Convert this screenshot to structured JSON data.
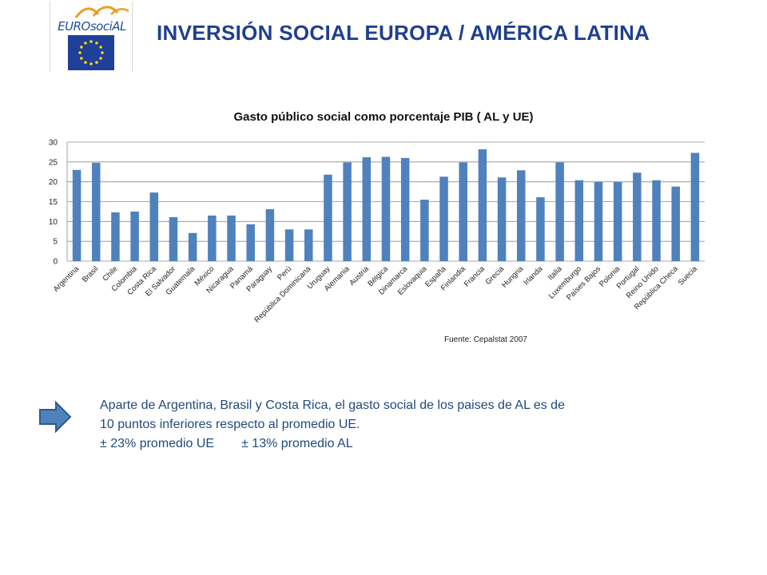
{
  "header": {
    "logo_text": "EUROsociAL",
    "title": "INVERSIÓN SOCIAL EUROPA / AMÉRICA LATINA"
  },
  "chart_data": {
    "type": "bar",
    "title": "Gasto público social como porcentaje PIB ( AL y UE)",
    "xlabel": "",
    "ylabel": "",
    "ylim": [
      0,
      30
    ],
    "yticks": [
      0,
      5,
      10,
      15,
      20,
      25,
      30
    ],
    "grid": true,
    "legend": "none",
    "bar_color": "#4f81bd",
    "categories": [
      "Argentina",
      "Brasil",
      "Chile",
      "Colombia",
      "Costa Rica",
      "El Salvador",
      "Guatemala",
      "México",
      "Nicaragua",
      "Panamá",
      "Paraguay",
      "Perú",
      "República Dominicana",
      "Uruguay",
      "Alemania",
      "Austria",
      "Bélgica",
      "Dinamarca",
      "Eslovaquia",
      "España",
      "Finlandia",
      "Francia",
      "Grecia",
      "Hungria",
      "Irlanda",
      "Italia",
      "Luxemburgo",
      "Países Bajos",
      "Polonia",
      "Portugal",
      "Reino Unido",
      "República Checa",
      "Suecia"
    ],
    "values": [
      23.0,
      24.8,
      12.3,
      12.5,
      17.3,
      11.1,
      7.1,
      11.5,
      11.5,
      9.3,
      13.1,
      8.0,
      8.0,
      21.8,
      24.9,
      26.2,
      26.3,
      26.0,
      15.5,
      21.3,
      24.9,
      28.2,
      21.1,
      22.9,
      16.1,
      24.9,
      20.4,
      20.0,
      20.0,
      22.3,
      20.4,
      18.8,
      27.3
    ]
  },
  "source": "Fuente: Cepalstat 2007",
  "note": {
    "line1": "Aparte de Argentina, Brasil y Costa Rica, el gasto social de los paises de AL es de",
    "line2": "10 puntos inferiores respecto  al promedio UE.",
    "line3a": "± 23% promedio UE",
    "line3b": "± 13% promedio AL"
  }
}
